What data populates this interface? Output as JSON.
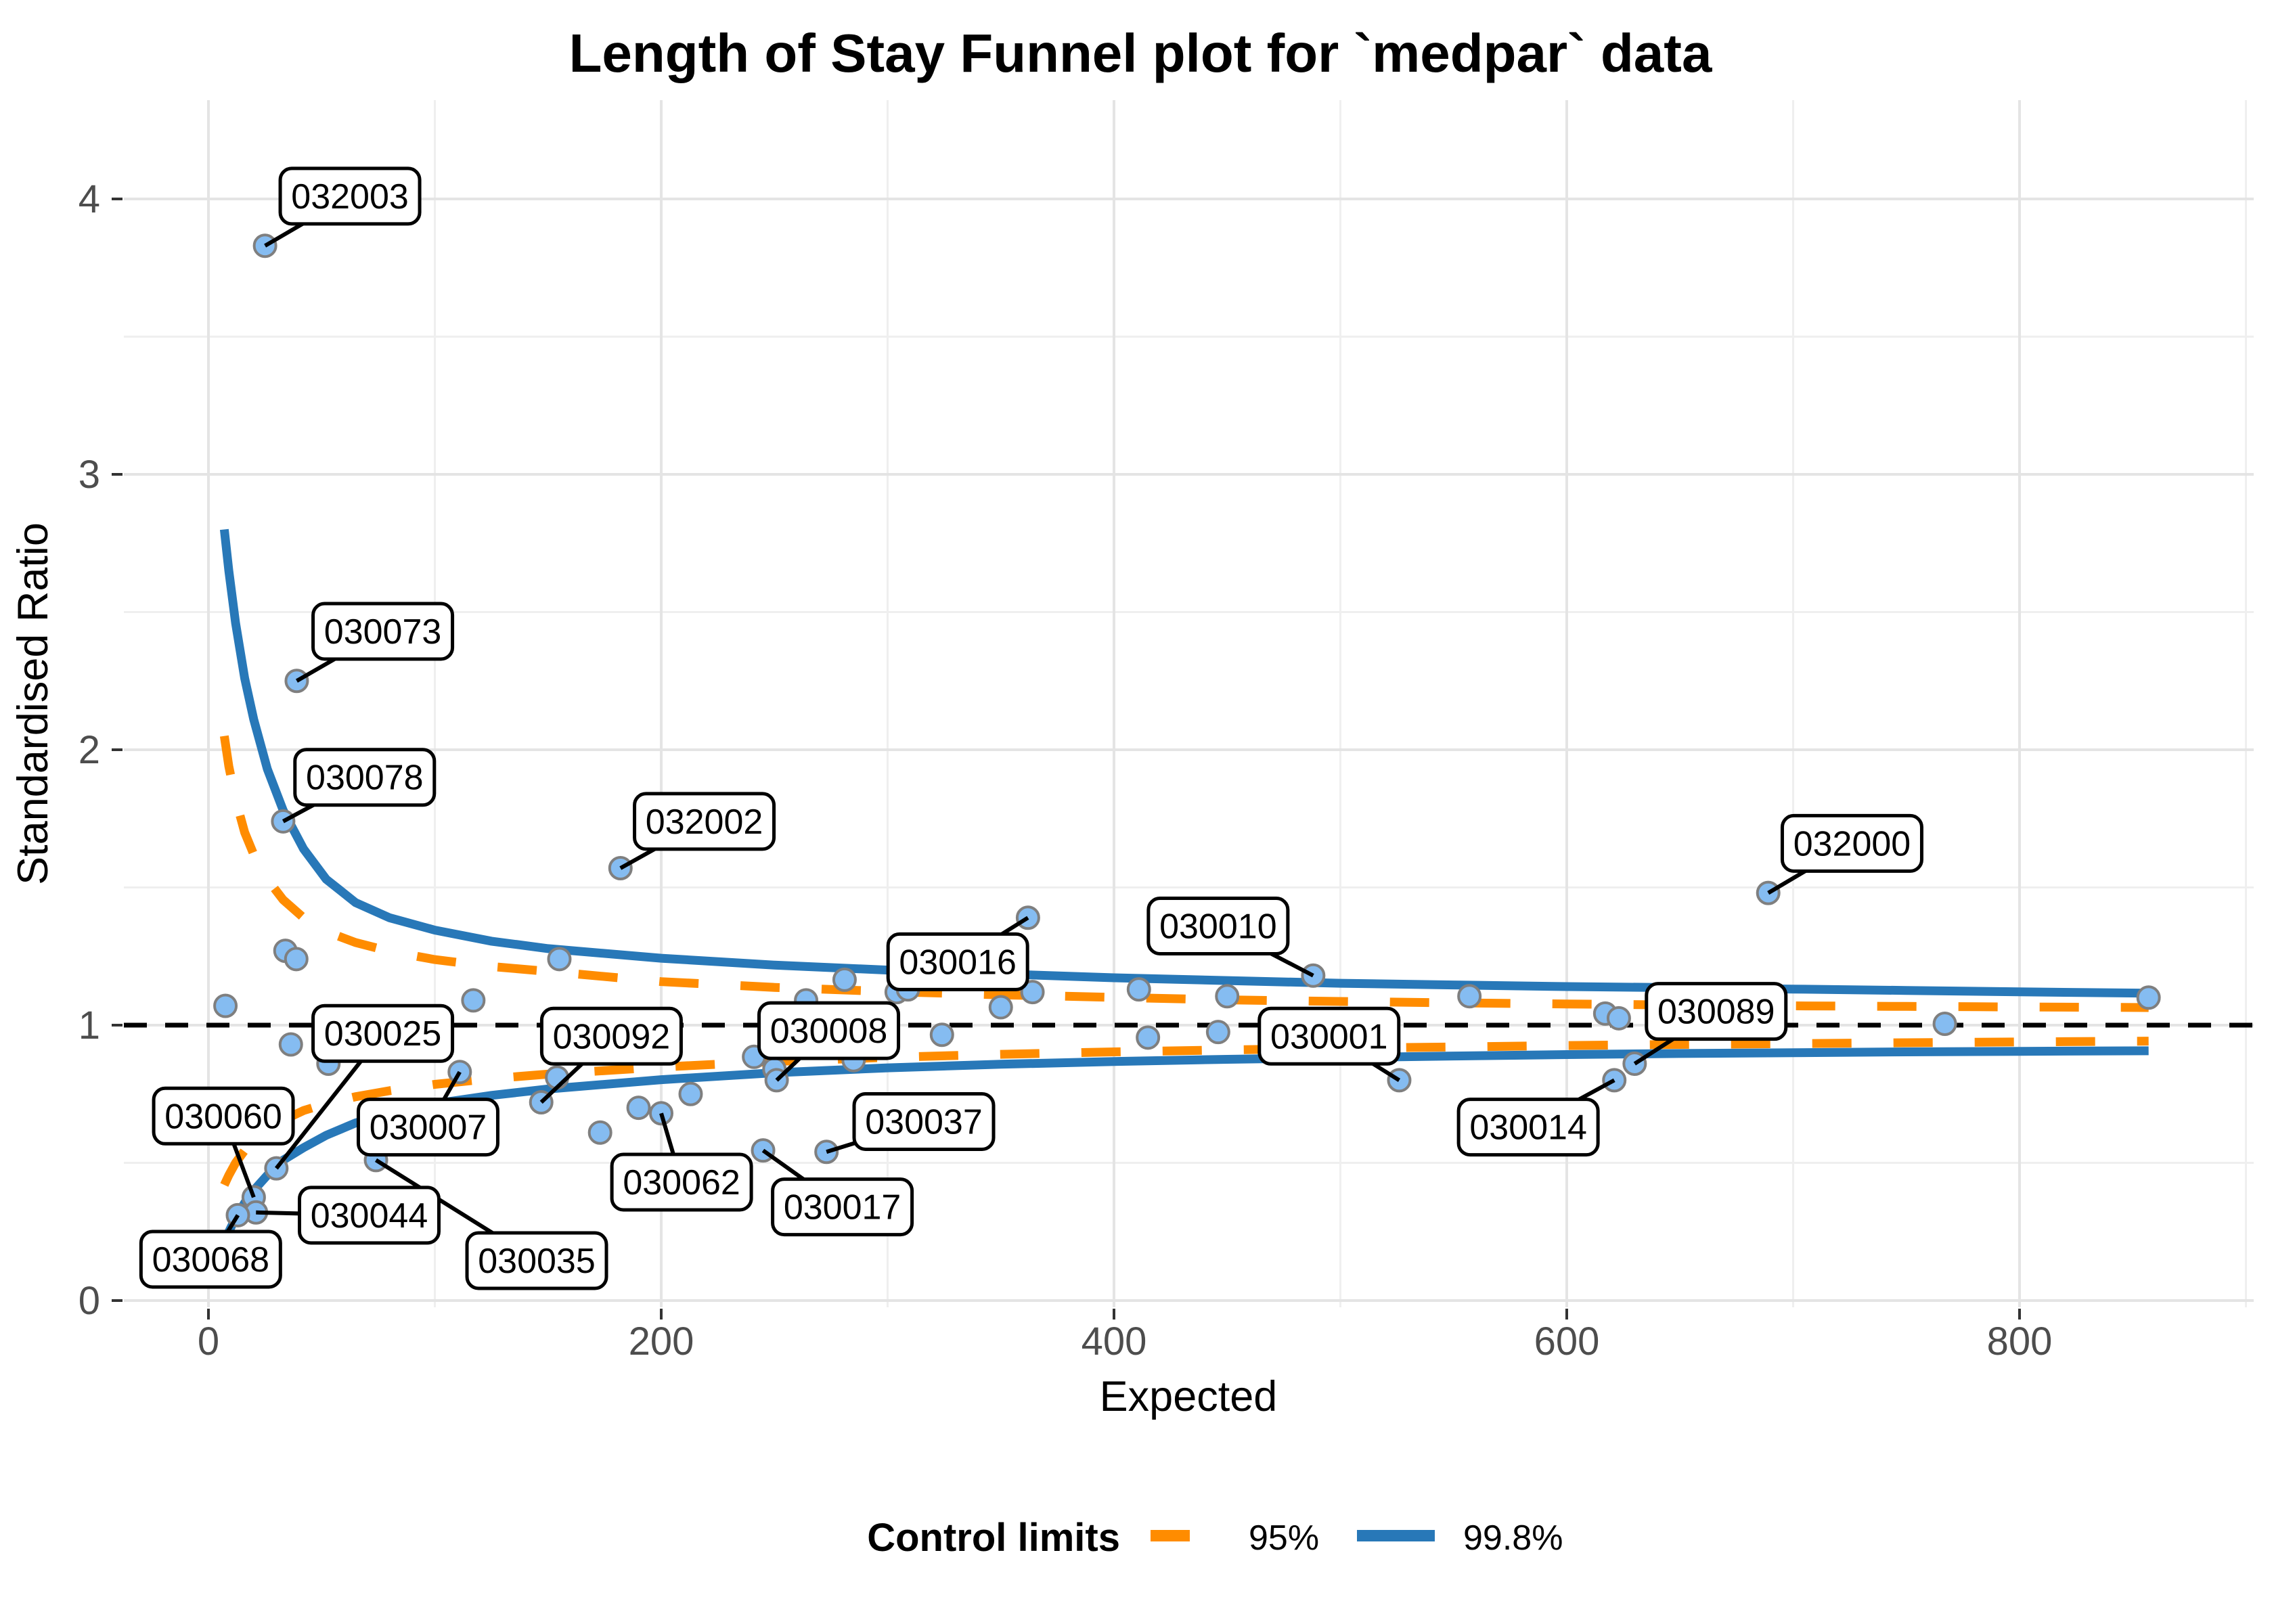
{
  "title": "Length of Stay Funnel plot for `medpar` data",
  "legend": {
    "title": "Control limits",
    "items": [
      {
        "label": "95%",
        "style": "dashed",
        "color": "#FF8C00"
      },
      {
        "label": "99.8%",
        "style": "solid",
        "color": "#2878B8"
      }
    ]
  },
  "colors": {
    "point_fill": "#85BCF1",
    "point_stroke": "#7F7F7F",
    "blue_998": "#2878B8",
    "orange_95": "#FF8C00",
    "grid_major": "#E4E4E4",
    "grid_minor": "#EFEFEF",
    "reference_line": "#000000",
    "tick_text": "#4D4D4D",
    "callout_border": "#000000",
    "callout_fill": "#FFFFFF"
  },
  "chart_data": {
    "type": "scatter",
    "title": "Length of Stay Funnel plot for `medpar` data",
    "xlabel": "Expected",
    "ylabel": "Standardised Ratio",
    "xlim": [
      -37,
      903
    ],
    "ylim": [
      -0.03,
      4.36
    ],
    "x_ticks": [
      0,
      200,
      400,
      600,
      800
    ],
    "x_minor": [
      100,
      300,
      500,
      700,
      900
    ],
    "y_ticks": [
      0,
      1,
      2,
      3,
      4
    ],
    "y_minor": [
      0.5,
      1.5,
      2.5,
      3.5
    ],
    "grid": true,
    "legend_position": "bottom",
    "reference_line_y": 1,
    "labeled_points": [
      {
        "id": "032003",
        "x": 25,
        "y": 3.83,
        "lx": 62.5,
        "ly": 4.01
      },
      {
        "id": "030073",
        "x": 39,
        "y": 2.25,
        "lx": 77,
        "ly": 2.43
      },
      {
        "id": "030078",
        "x": 33,
        "y": 1.74,
        "lx": 69,
        "ly": 1.9
      },
      {
        "id": "032002",
        "x": 182,
        "y": 1.57,
        "lx": 219,
        "ly": 1.74
      },
      {
        "id": "030016",
        "x": 362,
        "y": 1.39,
        "lx": 331,
        "ly": 1.23
      },
      {
        "id": "030010",
        "x": 488,
        "y": 1.18,
        "lx": 446,
        "ly": 1.36
      },
      {
        "id": "032000",
        "x": 689,
        "y": 1.48,
        "lx": 726,
        "ly": 1.66
      },
      {
        "id": "030089",
        "x": 630,
        "y": 0.86,
        "lx": 666,
        "ly": 1.05
      },
      {
        "id": "030001",
        "x": 526,
        "y": 0.8,
        "lx": 495,
        "ly": 0.96
      },
      {
        "id": "030014",
        "x": 621,
        "y": 0.8,
        "lx": 583,
        "ly": 0.63
      },
      {
        "id": "030008",
        "x": 251,
        "y": 0.8,
        "lx": 274,
        "ly": 0.98
      },
      {
        "id": "030092",
        "x": 147,
        "y": 0.72,
        "lx": 178,
        "ly": 0.96
      },
      {
        "id": "030025",
        "x": 30,
        "y": 0.48,
        "lx": 77,
        "ly": 0.97
      },
      {
        "id": "030007",
        "x": 111,
        "y": 0.83,
        "lx": 97,
        "ly": 0.63
      },
      {
        "id": "030060",
        "x": 20,
        "y": 0.375,
        "lx": 6.6,
        "ly": 0.67
      },
      {
        "id": "030044",
        "x": 21,
        "y": 0.32,
        "lx": 71,
        "ly": 0.31
      },
      {
        "id": "030068",
        "x": 13,
        "y": 0.31,
        "lx": 1,
        "ly": 0.15
      },
      {
        "id": "030035",
        "x": 74,
        "y": 0.51,
        "lx": 145,
        "ly": 0.145
      },
      {
        "id": "030062",
        "x": 200,
        "y": 0.68,
        "lx": 209,
        "ly": 0.43
      },
      {
        "id": "030017",
        "x": 245,
        "y": 0.545,
        "lx": 280,
        "ly": 0.34
      },
      {
        "id": "030037",
        "x": 273,
        "y": 0.54,
        "lx": 316,
        "ly": 0.65
      }
    ],
    "unlabeled_points": [
      [
        7.5,
        1.07
      ],
      [
        34,
        1.27
      ],
      [
        38.8,
        1.24
      ],
      [
        36.4,
        0.93
      ],
      [
        53,
        0.86
      ],
      [
        117,
        1.09
      ],
      [
        154,
        0.81
      ],
      [
        155,
        1.24
      ],
      [
        173,
        0.61
      ],
      [
        190,
        0.7
      ],
      [
        213,
        0.75
      ],
      [
        241,
        0.885
      ],
      [
        250,
        0.84
      ],
      [
        264,
        1.09
      ],
      [
        281,
        1.165
      ],
      [
        285,
        0.873
      ],
      [
        304,
        1.12
      ],
      [
        309,
        1.13
      ],
      [
        324,
        0.965
      ],
      [
        350,
        1.065
      ],
      [
        364,
        1.12
      ],
      [
        411,
        1.13
      ],
      [
        415,
        0.955
      ],
      [
        446,
        0.975
      ],
      [
        450,
        1.105
      ],
      [
        557,
        1.105
      ],
      [
        617,
        1.042
      ],
      [
        623,
        1.025
      ],
      [
        767,
        1.005
      ],
      [
        857,
        1.1
      ]
    ],
    "limits": {
      "p998_upper": [
        [
          7,
          2.8
        ],
        [
          9,
          2.65
        ],
        [
          12,
          2.46
        ],
        [
          16,
          2.26
        ],
        [
          20,
          2.11
        ],
        [
          26,
          1.93
        ],
        [
          33,
          1.78
        ],
        [
          42,
          1.64
        ],
        [
          52,
          1.53
        ],
        [
          65,
          1.445
        ],
        [
          80,
          1.39
        ],
        [
          100,
          1.345
        ],
        [
          125,
          1.305
        ],
        [
          150,
          1.278
        ],
        [
          200,
          1.243
        ],
        [
          250,
          1.218
        ],
        [
          300,
          1.2
        ],
        [
          350,
          1.186
        ],
        [
          400,
          1.172
        ],
        [
          450,
          1.162
        ],
        [
          500,
          1.152
        ],
        [
          550,
          1.146
        ],
        [
          600,
          1.14
        ],
        [
          650,
          1.136
        ],
        [
          700,
          1.131
        ],
        [
          750,
          1.126
        ],
        [
          800,
          1.121
        ],
        [
          857,
          1.116
        ]
      ],
      "p95_upper": [
        [
          7,
          2.05
        ],
        [
          9,
          1.94
        ],
        [
          12,
          1.82
        ],
        [
          16,
          1.7
        ],
        [
          20,
          1.62
        ],
        [
          26,
          1.53
        ],
        [
          33,
          1.455
        ],
        [
          42,
          1.39
        ],
        [
          52,
          1.34
        ],
        [
          65,
          1.3
        ],
        [
          80,
          1.268
        ],
        [
          100,
          1.238
        ],
        [
          125,
          1.213
        ],
        [
          150,
          1.195
        ],
        [
          200,
          1.158
        ],
        [
          250,
          1.137
        ],
        [
          300,
          1.122
        ],
        [
          350,
          1.11
        ],
        [
          400,
          1.101
        ],
        [
          450,
          1.092
        ],
        [
          500,
          1.086
        ],
        [
          550,
          1.081
        ],
        [
          600,
          1.077
        ],
        [
          650,
          1.073
        ],
        [
          700,
          1.07
        ],
        [
          750,
          1.068
        ],
        [
          800,
          1.066
        ],
        [
          857,
          1.064
        ]
      ],
      "p95_lower": [
        [
          7,
          0.42
        ],
        [
          9,
          0.455
        ],
        [
          12,
          0.5
        ],
        [
          16,
          0.545
        ],
        [
          20,
          0.575
        ],
        [
          26,
          0.615
        ],
        [
          33,
          0.655
        ],
        [
          42,
          0.69
        ],
        [
          52,
          0.715
        ],
        [
          65,
          0.74
        ],
        [
          80,
          0.762
        ],
        [
          100,
          0.785
        ],
        [
          125,
          0.806
        ],
        [
          150,
          0.822
        ],
        [
          200,
          0.848
        ],
        [
          250,
          0.868
        ],
        [
          300,
          0.883
        ],
        [
          350,
          0.894
        ],
        [
          400,
          0.903
        ],
        [
          450,
          0.91
        ],
        [
          500,
          0.916
        ],
        [
          550,
          0.921
        ],
        [
          600,
          0.926
        ],
        [
          650,
          0.93
        ],
        [
          700,
          0.933
        ],
        [
          750,
          0.936
        ],
        [
          800,
          0.939
        ],
        [
          857,
          0.942
        ]
      ],
      "p998_lower": [
        [
          7,
          0.21
        ],
        [
          9,
          0.25
        ],
        [
          12,
          0.3
        ],
        [
          16,
          0.355
        ],
        [
          20,
          0.4
        ],
        [
          26,
          0.455
        ],
        [
          33,
          0.51
        ],
        [
          42,
          0.555
        ],
        [
          52,
          0.6
        ],
        [
          65,
          0.645
        ],
        [
          80,
          0.68
        ],
        [
          100,
          0.715
        ],
        [
          125,
          0.745
        ],
        [
          150,
          0.768
        ],
        [
          200,
          0.802
        ],
        [
          250,
          0.827
        ],
        [
          300,
          0.845
        ],
        [
          350,
          0.858
        ],
        [
          400,
          0.868
        ],
        [
          450,
          0.876
        ],
        [
          500,
          0.882
        ],
        [
          550,
          0.888
        ],
        [
          600,
          0.893
        ],
        [
          650,
          0.897
        ],
        [
          700,
          0.9
        ],
        [
          750,
          0.903
        ],
        [
          800,
          0.905
        ],
        [
          857,
          0.907
        ]
      ]
    }
  }
}
